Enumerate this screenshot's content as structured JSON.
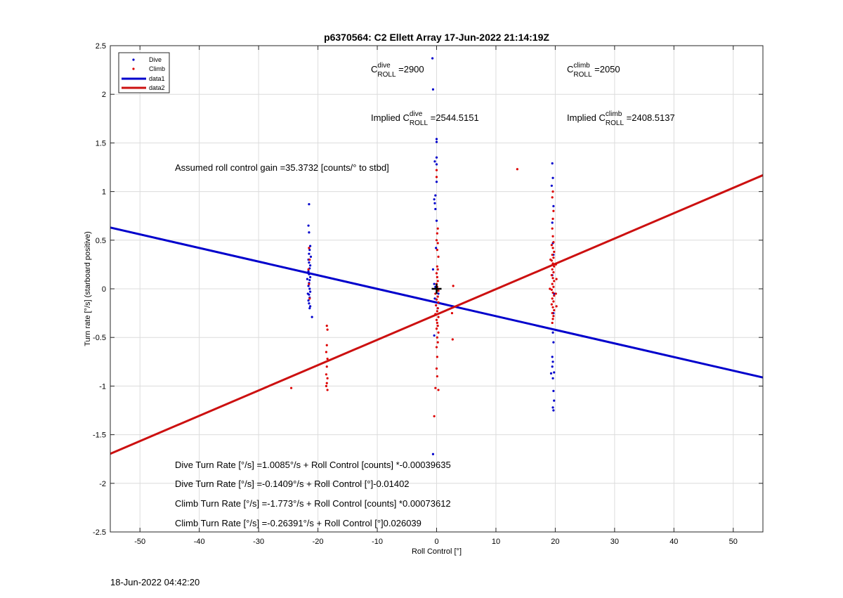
{
  "chart_data": {
    "type": "scatter",
    "title": "p6370564: C2 Ellett Array 17-Jun-2022 21:14:19Z",
    "xlabel": "Roll Control [°]",
    "ylabel": "Turn rate [°/s] (starboard positive)",
    "xlim": [
      -55,
      55
    ],
    "ylim": [
      -2.5,
      2.5
    ],
    "xticks": [
      "-50",
      "-40",
      "-30",
      "-20",
      "-10",
      "0",
      "10",
      "20",
      "30",
      "40",
      "50"
    ],
    "yticks": [
      "-2.5",
      "-2",
      "-1.5",
      "-1",
      "-0.5",
      "0",
      "0.5",
      "1",
      "1.5",
      "2",
      "2.5"
    ],
    "grid": true,
    "legend_position": "top-left",
    "legend": [
      {
        "label": "Dive",
        "color": "#0000cc",
        "kind": "marker"
      },
      {
        "label": "Climb",
        "color": "#dd0000",
        "kind": "marker"
      },
      {
        "label": "data1",
        "color": "#0000cc",
        "kind": "line"
      },
      {
        "label": "data2",
        "color": "#cc1010",
        "kind": "line"
      }
    ],
    "series": [
      {
        "name": "Dive",
        "color": "#0000cc",
        "points": [
          [
            -21.5,
            0.87
          ],
          [
            -21.6,
            0.65
          ],
          [
            -21.5,
            0.58
          ],
          [
            -21.3,
            0.44
          ],
          [
            -21.4,
            0.4
          ],
          [
            -21.5,
            0.36
          ],
          [
            -21.2,
            0.33
          ],
          [
            -21.6,
            0.3
          ],
          [
            -21.5,
            0.27
          ],
          [
            -21.3,
            0.24
          ],
          [
            -21.4,
            0.21
          ],
          [
            -21.6,
            0.18
          ],
          [
            -21.5,
            0.15
          ],
          [
            -21.3,
            0.12
          ],
          [
            -21.4,
            0.09
          ],
          [
            -21.5,
            0.06
          ],
          [
            -21.6,
            0.03
          ],
          [
            -21.4,
            0.0
          ],
          [
            -21.3,
            -0.03
          ],
          [
            -21.5,
            -0.06
          ],
          [
            -21.4,
            -0.09
          ],
          [
            -21.6,
            -0.12
          ],
          [
            -21.5,
            -0.15
          ],
          [
            -21.3,
            -0.18
          ],
          [
            -21.4,
            -0.2
          ],
          [
            -21.0,
            -0.29
          ],
          [
            -21.8,
            0.1
          ],
          [
            -21.7,
            -0.05
          ],
          [
            -0.7,
            2.37
          ],
          [
            -0.6,
            2.05
          ],
          [
            0.0,
            1.54
          ],
          [
            0.0,
            1.51
          ],
          [
            0.0,
            1.35
          ],
          [
            -0.3,
            1.31
          ],
          [
            0.0,
            1.28
          ],
          [
            0.0,
            1.1
          ],
          [
            -0.2,
            0.96
          ],
          [
            -0.4,
            0.92
          ],
          [
            -0.3,
            0.88
          ],
          [
            -0.2,
            0.82
          ],
          [
            0.0,
            0.7
          ],
          [
            -0.1,
            0.42
          ],
          [
            -0.6,
            0.2
          ],
          [
            -0.4,
            0.05
          ],
          [
            -0.2,
            0.02
          ],
          [
            0.0,
            0.0
          ],
          [
            0.3,
            -0.05
          ],
          [
            -0.3,
            -0.1
          ],
          [
            0.2,
            -0.2
          ],
          [
            -0.4,
            -0.48
          ],
          [
            -0.6,
            -1.7
          ],
          [
            19.5,
            1.29
          ],
          [
            19.6,
            1.14
          ],
          [
            19.4,
            1.06
          ],
          [
            19.7,
            0.85
          ],
          [
            19.5,
            0.68
          ],
          [
            19.6,
            0.47
          ],
          [
            19.7,
            0.35
          ],
          [
            19.5,
            0.14
          ],
          [
            19.8,
            -0.05
          ],
          [
            19.7,
            -0.25
          ],
          [
            19.6,
            -0.45
          ],
          [
            19.7,
            -0.55
          ],
          [
            19.5,
            -0.7
          ],
          [
            19.6,
            -0.75
          ],
          [
            19.5,
            -0.8
          ],
          [
            19.8,
            -0.86
          ],
          [
            19.3,
            -0.87
          ],
          [
            19.6,
            -0.92
          ],
          [
            19.7,
            -1.05
          ],
          [
            19.8,
            -1.15
          ],
          [
            19.6,
            -1.22
          ],
          [
            19.7,
            -1.25
          ]
        ]
      },
      {
        "name": "Climb",
        "color": "#dd0000",
        "points": [
          [
            -21.5,
            0.42
          ],
          [
            -21.4,
            0.3
          ],
          [
            -21.6,
            0.2
          ],
          [
            -21.5,
            0.05
          ],
          [
            -21.4,
            -0.1
          ],
          [
            -18.5,
            -0.38
          ],
          [
            -18.4,
            -0.42
          ],
          [
            -18.5,
            -0.58
          ],
          [
            -18.6,
            -0.65
          ],
          [
            -18.4,
            -0.72
          ],
          [
            -18.5,
            -0.8
          ],
          [
            -18.6,
            -0.88
          ],
          [
            -18.4,
            -0.92
          ],
          [
            -18.5,
            -0.97
          ],
          [
            -18.6,
            -1.0
          ],
          [
            -18.4,
            -1.04
          ],
          [
            -24.5,
            -1.02
          ],
          [
            0.0,
            1.22
          ],
          [
            0.0,
            1.15
          ],
          [
            0.2,
            0.62
          ],
          [
            0.1,
            0.57
          ],
          [
            0.0,
            0.5
          ],
          [
            0.2,
            0.47
          ],
          [
            0.1,
            0.4
          ],
          [
            0.3,
            0.33
          ],
          [
            0.1,
            0.23
          ],
          [
            0.2,
            0.2
          ],
          [
            0.0,
            0.16
          ],
          [
            0.1,
            0.12
          ],
          [
            0.2,
            0.08
          ],
          [
            0.0,
            0.05
          ],
          [
            0.1,
            0.02
          ],
          [
            0.3,
            -0.02
          ],
          [
            -0.2,
            -0.05
          ],
          [
            0.2,
            -0.08
          ],
          [
            0.0,
            -0.11
          ],
          [
            0.3,
            -0.14
          ],
          [
            -0.1,
            -0.17
          ],
          [
            0.2,
            -0.2
          ],
          [
            0.1,
            -0.23
          ],
          [
            -0.2,
            -0.26
          ],
          [
            0.3,
            -0.29
          ],
          [
            0.0,
            -0.32
          ],
          [
            0.1,
            -0.35
          ],
          [
            0.2,
            -0.38
          ],
          [
            0.0,
            -0.41
          ],
          [
            0.3,
            -0.45
          ],
          [
            0.1,
            -0.5
          ],
          [
            0.2,
            -0.55
          ],
          [
            0.0,
            -0.6
          ],
          [
            0.1,
            -0.7
          ],
          [
            0.0,
            -0.82
          ],
          [
            0.1,
            -0.9
          ],
          [
            -0.2,
            -1.02
          ],
          [
            0.3,
            -1.04
          ],
          [
            -0.4,
            -1.31
          ],
          [
            2.8,
            0.03
          ],
          [
            2.6,
            -0.25
          ],
          [
            2.7,
            -0.52
          ],
          [
            13.6,
            1.23
          ],
          [
            19.6,
            1.0
          ],
          [
            19.5,
            0.94
          ],
          [
            19.7,
            0.8
          ],
          [
            19.6,
            0.72
          ],
          [
            19.5,
            0.62
          ],
          [
            19.6,
            0.54
          ],
          [
            19.7,
            0.48
          ],
          [
            19.4,
            0.45
          ],
          [
            19.6,
            0.42
          ],
          [
            19.8,
            0.38
          ],
          [
            19.5,
            0.35
          ],
          [
            19.7,
            0.32
          ],
          [
            19.4,
            0.29
          ],
          [
            19.6,
            0.26
          ],
          [
            19.8,
            0.23
          ],
          [
            19.5,
            0.2
          ],
          [
            19.7,
            0.17
          ],
          [
            19.4,
            0.14
          ],
          [
            19.6,
            0.11
          ],
          [
            19.8,
            0.08
          ],
          [
            19.5,
            0.05
          ],
          [
            19.7,
            0.02
          ],
          [
            19.4,
            -0.01
          ],
          [
            19.6,
            -0.04
          ],
          [
            19.8,
            -0.07
          ],
          [
            19.5,
            -0.1
          ],
          [
            19.7,
            -0.13
          ],
          [
            19.4,
            -0.16
          ],
          [
            19.6,
            -0.19
          ],
          [
            19.8,
            -0.22
          ],
          [
            19.5,
            -0.25
          ],
          [
            19.7,
            -0.28
          ],
          [
            19.6,
            -0.31
          ],
          [
            19.5,
            -0.35
          ],
          [
            20.1,
            0.25
          ],
          [
            20.2,
            0.1
          ],
          [
            20.1,
            -0.05
          ],
          [
            20.2,
            -0.18
          ],
          [
            19.2,
            0.3
          ],
          [
            19.1,
            0.0
          ]
        ]
      }
    ],
    "fit_lines": [
      {
        "name": "data1",
        "color": "#0000cc",
        "slope": -0.01402,
        "intercept": -0.1409
      },
      {
        "name": "data2",
        "color": "#cc1010",
        "slope": 0.026039,
        "intercept": -0.26391
      }
    ],
    "centroid_marker": [
      0,
      0
    ],
    "annotations": {
      "c_dive_prefix": "C",
      "c_dive_sup": "dive",
      "c_dive_sub": "ROLL",
      "c_dive_value": " =2900",
      "c_climb_prefix": "C",
      "c_climb_sup": "climb",
      "c_climb_sub": "ROLL",
      "c_climb_value": " =2050",
      "implied_dive_prefix": "Implied C",
      "implied_dive_sup": "dive",
      "implied_dive_sub": "ROLL",
      "implied_dive_value": " =2544.5151",
      "implied_climb_prefix": "Implied C",
      "implied_climb_sup": "climb",
      "implied_climb_sub": "ROLL",
      "implied_climb_value": " =2408.5137",
      "gain": "Assumed roll control gain =35.3732 [counts/° to stbd]",
      "eq1": "Dive Turn Rate [°/s] =1.0085°/s + Roll Control [counts] *-0.00039635",
      "eq2": "Dive Turn Rate [°/s] =-0.1409°/s + Roll Control [°]-0.01402",
      "eq3": "Climb Turn Rate [°/s] =-1.773°/s + Roll Control [counts] *0.00073612",
      "eq4": "Climb Turn Rate [°/s] =-0.26391°/s + Roll Control [°]0.026039"
    }
  },
  "footer": {
    "timestamp": "18-Jun-2022 04:42:20"
  }
}
